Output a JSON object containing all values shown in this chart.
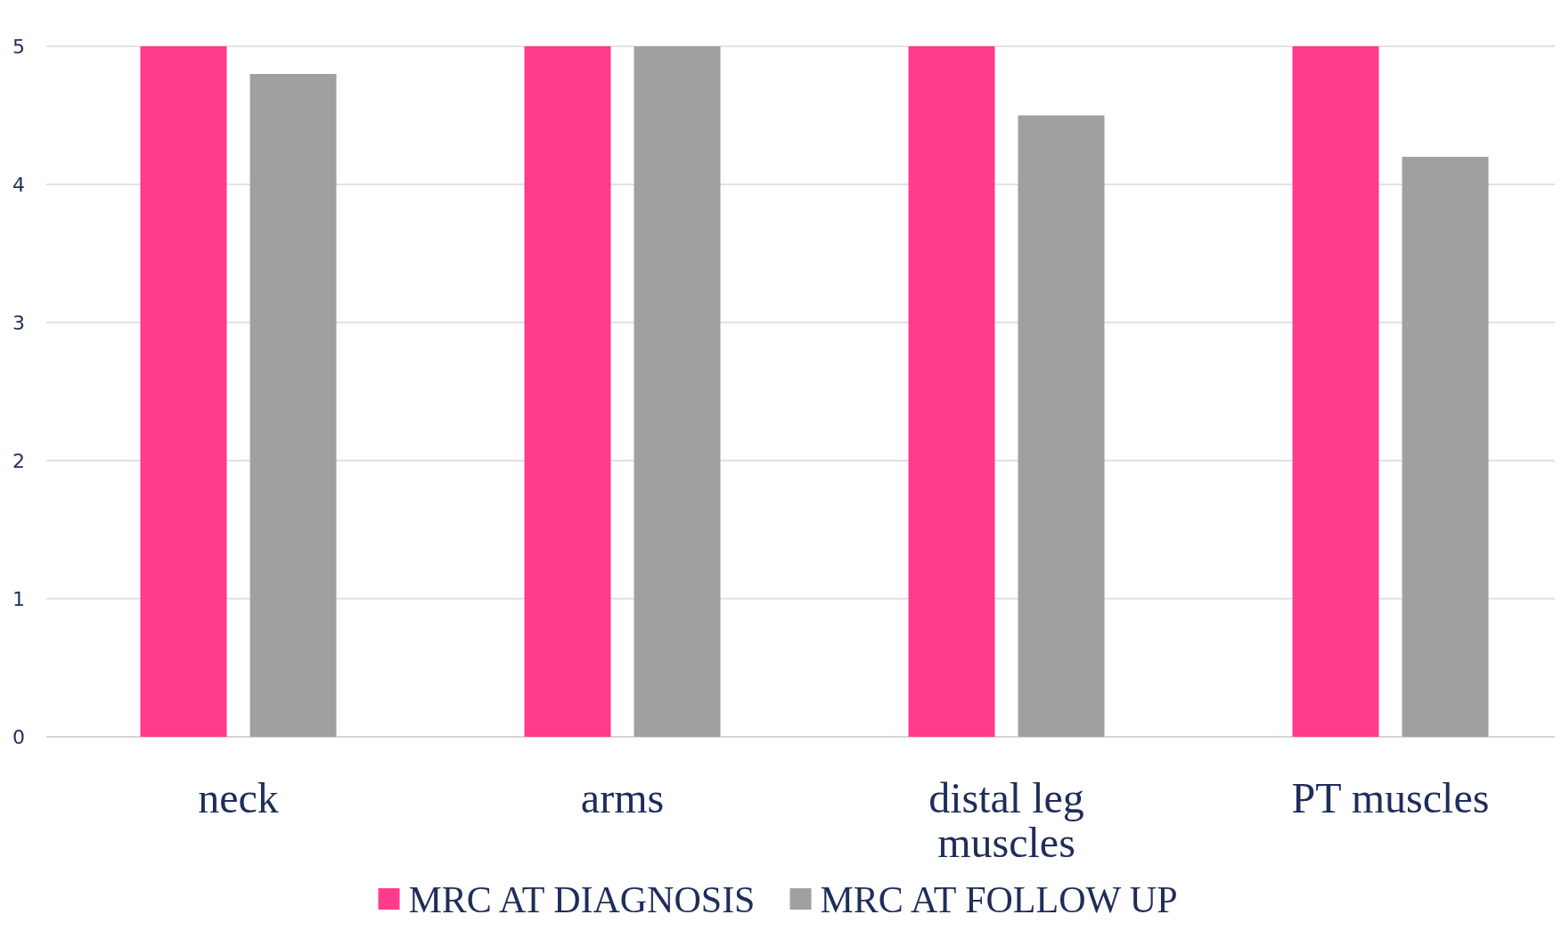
{
  "chart_data": {
    "type": "bar",
    "categories": [
      "neck",
      "arms",
      "distal leg muscles",
      "PT muscles"
    ],
    "series": [
      {
        "name": "MRC AT DIAGNOSIS",
        "color": "#ff3b8b",
        "values": [
          5,
          5,
          5,
          5
        ]
      },
      {
        "name": "MRC AT FOLLOW UP",
        "color": "#a0a0a0",
        "values": [
          4.8,
          5,
          4.5,
          4.2
        ]
      }
    ],
    "ylim": [
      0,
      5
    ],
    "yticks": [
      0,
      1,
      2,
      3,
      4,
      5
    ],
    "grid": "y",
    "legend": "bottom"
  }
}
